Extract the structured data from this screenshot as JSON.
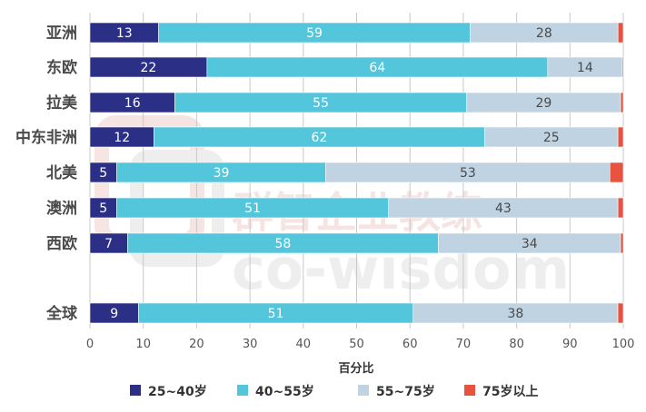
{
  "chart_data": {
    "type": "bar",
    "orientation": "horizontal",
    "stacked": true,
    "categories": [
      "亚洲",
      "东欧",
      "拉美",
      "中东非洲",
      "北美",
      "澳洲",
      "西欧",
      "全球"
    ],
    "series": [
      {
        "name": "25~40岁",
        "color": "#2b2f86",
        "text_color": "#ffffff",
        "values": [
          13,
          22,
          16,
          12,
          5,
          5,
          7,
          9
        ]
      },
      {
        "name": "40~55岁",
        "color": "#53c6dc",
        "text_color": "#ffffff",
        "values": [
          59,
          64,
          55,
          62,
          39,
          51,
          58,
          51
        ]
      },
      {
        "name": "55~75岁",
        "color": "#bfd3e3",
        "text_color": "#4a4a4a",
        "values": [
          28,
          14,
          29,
          25,
          53,
          43,
          34,
          38
        ]
      },
      {
        "name": "75岁以上",
        "color": "#e8533f",
        "text_color": "#ffffff",
        "values": [
          1,
          0.2,
          0.5,
          1,
          2.5,
          1,
          0.5,
          1
        ]
      }
    ],
    "xlabel": "百分比",
    "xlim": [
      0,
      100
    ],
    "xticks": [
      0,
      10,
      20,
      30,
      40,
      50,
      60,
      70,
      80,
      90,
      100
    ],
    "grid": true,
    "legend": "bottom"
  },
  "watermark": {
    "cn": "群智企业教练",
    "en": "co-wisdom"
  }
}
